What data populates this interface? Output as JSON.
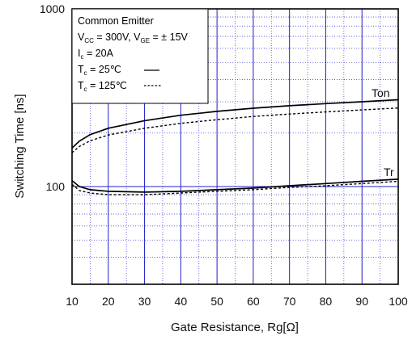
{
  "chart_data": {
    "type": "line",
    "xlabel": "Gate Resistance, Rg[Ω]",
    "ylabel": "Switching Time [ns]",
    "xlim": [
      10,
      100
    ],
    "ylim": [
      30,
      1000
    ],
    "y_scale": "log",
    "x_ticks": [
      "10",
      "20",
      "30",
      "40",
      "50",
      "60",
      "70",
      "80",
      "90",
      "100"
    ],
    "y_tick_labels": [
      "100",
      "1000"
    ],
    "grid": true,
    "legend": {
      "line1": "Common Emitter",
      "line2_prefix": "V",
      "line2_sub1": "CC",
      "line2_mid": " = 300V, V",
      "line2_sub2": "GE",
      "line2_suffix": " = ±  15V",
      "line3_prefix": "I",
      "line3_sub": "c",
      "line3_suffix": " = 20A",
      "line4_prefix": "T",
      "line4_sub": "c",
      "line4_suffix": " =   25℃",
      "line5_prefix": "T",
      "line5_sub": "c",
      "line5_suffix": " = 125℃",
      "placement": "top-left"
    },
    "curve_labels": {
      "ton": "Ton",
      "tr": "Tr"
    },
    "series": [
      {
        "curve": "Ton",
        "condition": "Tc = 25℃",
        "style": "solid",
        "x": [
          10,
          12,
          15,
          20,
          30,
          40,
          50,
          60,
          70,
          80,
          90,
          100
        ],
        "y": [
          165,
          180,
          196,
          213,
          235,
          252,
          265,
          276,
          285,
          293,
          300,
          308
        ]
      },
      {
        "curve": "Ton",
        "condition": "Tc = 125℃",
        "style": "dashed",
        "x": [
          10,
          12,
          15,
          20,
          30,
          40,
          50,
          60,
          70,
          80,
          90,
          100
        ],
        "y": [
          155,
          168,
          181,
          195,
          213,
          227,
          238,
          248,
          256,
          263,
          270,
          277
        ]
      },
      {
        "curve": "Tr",
        "condition": "Tc = 25℃",
        "style": "solid",
        "x": [
          10,
          12,
          15,
          20,
          30,
          40,
          50,
          60,
          70,
          80,
          90,
          100
        ],
        "y": [
          108,
          100,
          96,
          94,
          93,
          94,
          96,
          98,
          101,
          104,
          107,
          110
        ]
      },
      {
        "curve": "Tr",
        "condition": "Tc = 125℃",
        "style": "dashed",
        "x": [
          10,
          12,
          15,
          20,
          30,
          40,
          50,
          60,
          70,
          80,
          90,
          100
        ],
        "y": [
          103,
          95,
          92,
          90,
          90,
          92,
          94,
          96,
          99,
          101,
          104,
          107
        ]
      }
    ]
  },
  "colors": {
    "major_grid": "#2020cc",
    "minor_grid": "#4c4cdd",
    "curve": "#000000"
  }
}
